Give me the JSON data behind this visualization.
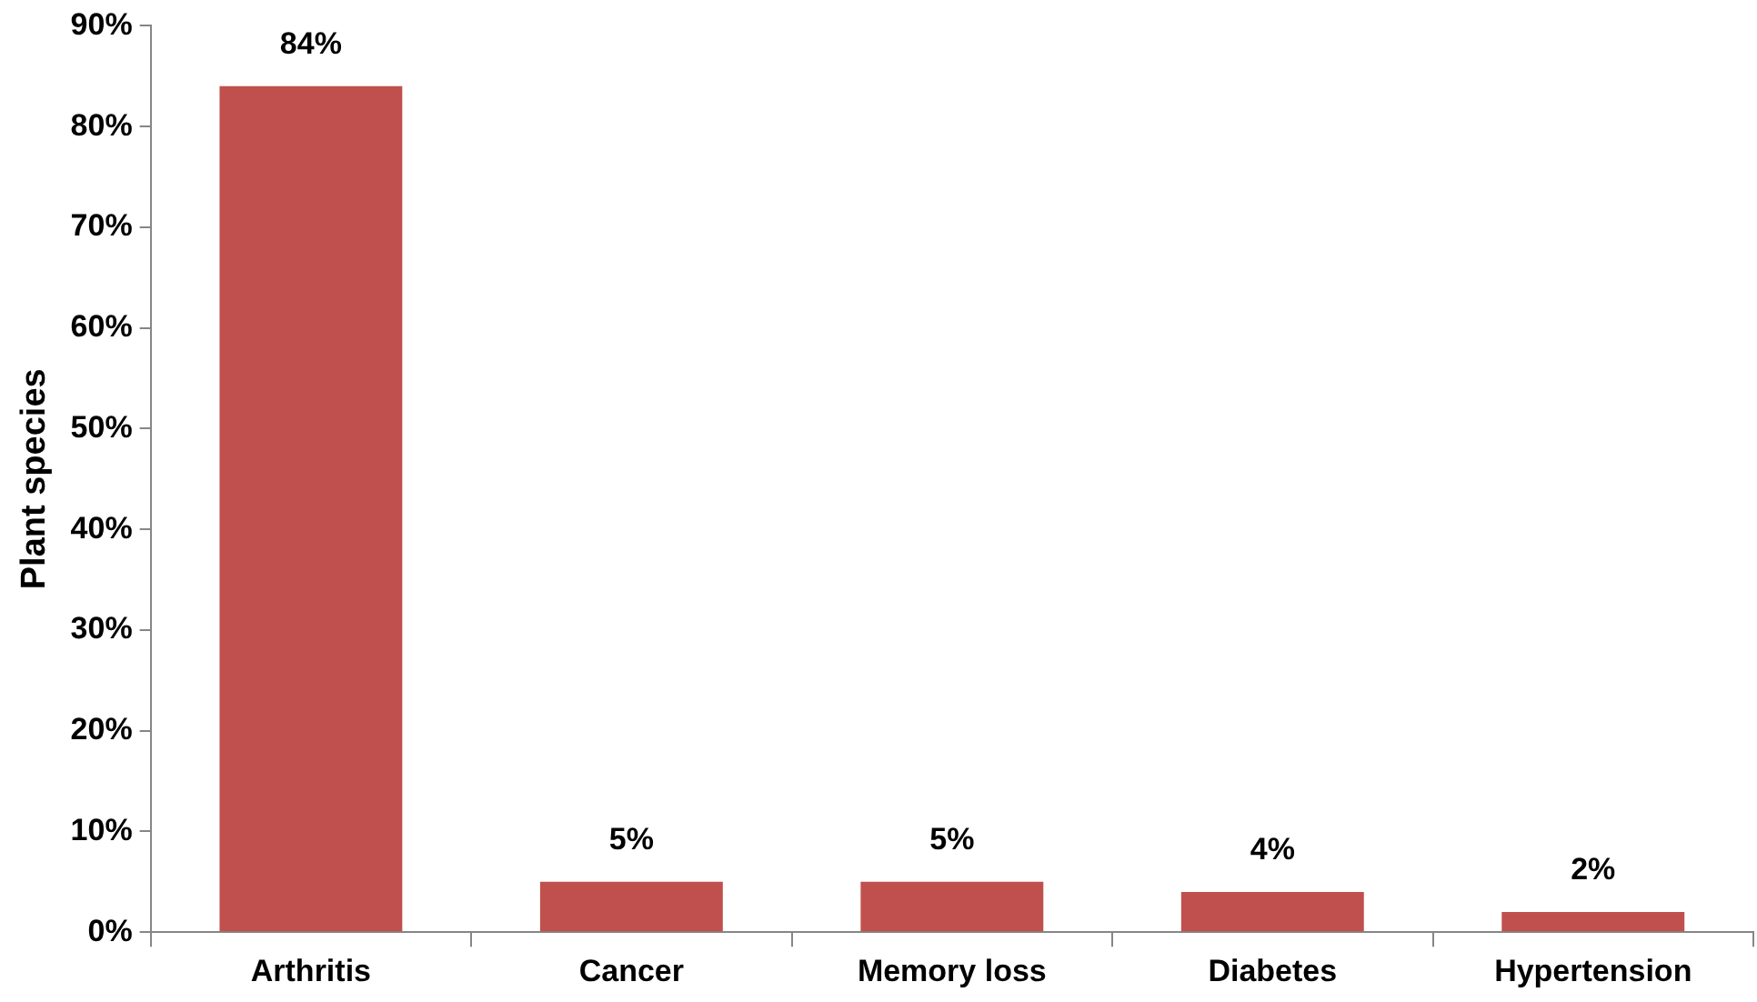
{
  "chart_data": {
    "type": "bar",
    "ylabel": "Plant species",
    "categories": [
      "Arthritis",
      "Cancer",
      "Memory loss",
      "Diabetes",
      "Hypertension"
    ],
    "values": [
      84,
      5,
      5,
      4,
      2
    ],
    "color": "#c0504d",
    "value_labels": [
      "84%",
      "5%",
      "5%",
      "4%",
      "2%"
    ],
    "ylim": [
      0,
      90
    ],
    "yticks": [
      {
        "value": 0,
        "label": "0%"
      },
      {
        "value": 10,
        "label": "10%"
      },
      {
        "value": 20,
        "label": "20%"
      },
      {
        "value": 30,
        "label": "30%"
      },
      {
        "value": 40,
        "label": "40%"
      },
      {
        "value": 50,
        "label": "50%"
      },
      {
        "value": 60,
        "label": "60%"
      },
      {
        "value": 70,
        "label": "70%"
      },
      {
        "value": 80,
        "label": "80%"
      },
      {
        "value": 90,
        "label": "90%"
      }
    ],
    "grid": false,
    "legend": false
  }
}
